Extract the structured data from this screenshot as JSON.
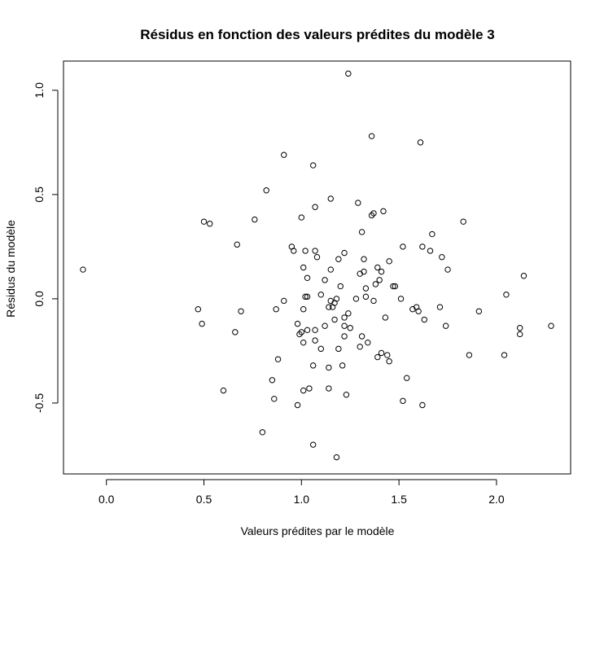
{
  "chart_data": {
    "type": "scatter",
    "title": "Résidus en fonction des valeurs prédites du modèle 3",
    "xlabel": "Valeurs prédites par le modèle",
    "ylabel": "Résidus du modèle",
    "xlim": [
      -0.22,
      2.38
    ],
    "ylim": [
      -0.84,
      1.14
    ],
    "xticks": [
      0.0,
      0.5,
      1.0,
      1.5,
      2.0
    ],
    "xtick_labels": [
      "0.0",
      "0.5",
      "1.0",
      "1.5",
      "2.0"
    ],
    "yticks": [
      -0.5,
      0.0,
      0.5,
      1.0
    ],
    "ytick_labels": [
      "-0.5",
      "0.0",
      "0.5",
      "1.0"
    ],
    "grid": false,
    "legend": "none",
    "marker": "open-circle",
    "points": [
      [
        -0.12,
        0.14
      ],
      [
        0.47,
        -0.05
      ],
      [
        0.49,
        -0.12
      ],
      [
        0.5,
        0.37
      ],
      [
        0.53,
        0.36
      ],
      [
        0.6,
        -0.44
      ],
      [
        0.66,
        -0.16
      ],
      [
        0.67,
        0.26
      ],
      [
        0.69,
        -0.06
      ],
      [
        0.76,
        0.38
      ],
      [
        0.8,
        -0.64
      ],
      [
        0.82,
        0.52
      ],
      [
        0.85,
        -0.39
      ],
      [
        0.86,
        -0.48
      ],
      [
        0.87,
        -0.05
      ],
      [
        0.88,
        -0.29
      ],
      [
        0.91,
        0.69
      ],
      [
        0.91,
        -0.01
      ],
      [
        0.95,
        0.25
      ],
      [
        0.96,
        0.23
      ],
      [
        0.98,
        -0.12
      ],
      [
        0.98,
        -0.51
      ],
      [
        0.99,
        -0.17
      ],
      [
        1.0,
        0.39
      ],
      [
        1.0,
        -0.16
      ],
      [
        1.01,
        -0.44
      ],
      [
        1.01,
        0.15
      ],
      [
        1.01,
        -0.05
      ],
      [
        1.01,
        -0.21
      ],
      [
        1.02,
        0.01
      ],
      [
        1.02,
        0.23
      ],
      [
        1.03,
        -0.15
      ],
      [
        1.03,
        0.01
      ],
      [
        1.03,
        0.1
      ],
      [
        1.04,
        -0.43
      ],
      [
        1.06,
        0.64
      ],
      [
        1.06,
        -0.7
      ],
      [
        1.06,
        -0.32
      ],
      [
        1.07,
        -0.2
      ],
      [
        1.07,
        0.44
      ],
      [
        1.07,
        0.23
      ],
      [
        1.07,
        -0.15
      ],
      [
        1.08,
        0.2
      ],
      [
        1.1,
        -0.24
      ],
      [
        1.1,
        0.02
      ],
      [
        1.12,
        -0.13
      ],
      [
        1.12,
        0.09
      ],
      [
        1.14,
        -0.43
      ],
      [
        1.14,
        -0.33
      ],
      [
        1.14,
        -0.04
      ],
      [
        1.15,
        0.48
      ],
      [
        1.15,
        -0.01
      ],
      [
        1.15,
        0.14
      ],
      [
        1.16,
        -0.04
      ],
      [
        1.17,
        -0.1
      ],
      [
        1.17,
        -0.02
      ],
      [
        1.18,
        0.0
      ],
      [
        1.18,
        -0.76
      ],
      [
        1.19,
        -0.24
      ],
      [
        1.19,
        0.19
      ],
      [
        1.2,
        0.06
      ],
      [
        1.21,
        -0.32
      ],
      [
        1.22,
        0.22
      ],
      [
        1.22,
        -0.13
      ],
      [
        1.22,
        -0.18
      ],
      [
        1.22,
        -0.09
      ],
      [
        1.23,
        -0.46
      ],
      [
        1.24,
        1.08
      ],
      [
        1.24,
        -0.07
      ],
      [
        1.25,
        -0.14
      ],
      [
        1.28,
        0.0
      ],
      [
        1.29,
        0.46
      ],
      [
        1.3,
        0.12
      ],
      [
        1.3,
        -0.23
      ],
      [
        1.31,
        -0.18
      ],
      [
        1.31,
        0.32
      ],
      [
        1.32,
        0.13
      ],
      [
        1.32,
        0.19
      ],
      [
        1.33,
        0.05
      ],
      [
        1.33,
        0.01
      ],
      [
        1.34,
        -0.21
      ],
      [
        1.36,
        0.78
      ],
      [
        1.36,
        0.4
      ],
      [
        1.37,
        0.41
      ],
      [
        1.37,
        -0.01
      ],
      [
        1.38,
        0.07
      ],
      [
        1.39,
        0.15
      ],
      [
        1.39,
        -0.28
      ],
      [
        1.4,
        0.09
      ],
      [
        1.41,
        0.13
      ],
      [
        1.41,
        -0.26
      ],
      [
        1.42,
        0.42
      ],
      [
        1.43,
        -0.09
      ],
      [
        1.44,
        -0.27
      ],
      [
        1.45,
        -0.3
      ],
      [
        1.45,
        0.18
      ],
      [
        1.47,
        0.06
      ],
      [
        1.48,
        0.06
      ],
      [
        1.51,
        0.0
      ],
      [
        1.52,
        -0.49
      ],
      [
        1.52,
        0.25
      ],
      [
        1.54,
        -0.38
      ],
      [
        1.57,
        -0.05
      ],
      [
        1.59,
        -0.04
      ],
      [
        1.6,
        -0.06
      ],
      [
        1.61,
        0.75
      ],
      [
        1.62,
        -0.51
      ],
      [
        1.62,
        0.25
      ],
      [
        1.63,
        -0.1
      ],
      [
        1.66,
        0.23
      ],
      [
        1.67,
        0.31
      ],
      [
        1.71,
        -0.04
      ],
      [
        1.72,
        0.2
      ],
      [
        1.74,
        -0.13
      ],
      [
        1.75,
        0.14
      ],
      [
        1.83,
        0.37
      ],
      [
        1.86,
        -0.27
      ],
      [
        1.91,
        -0.06
      ],
      [
        2.04,
        -0.27
      ],
      [
        2.05,
        0.02
      ],
      [
        2.12,
        -0.17
      ],
      [
        2.12,
        -0.14
      ],
      [
        2.14,
        0.11
      ],
      [
        2.28,
        -0.13
      ]
    ]
  }
}
